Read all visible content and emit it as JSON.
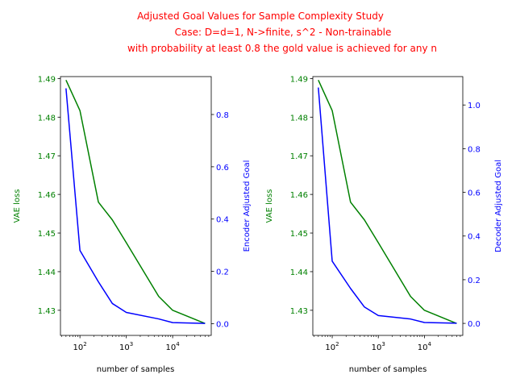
{
  "title_lines": [
    "Adjusted Goal Values for Sample Complexity Study",
    "Case: D=d=1, N->finite, s^2 - Non-trainable",
    "with probability at least 0.8 the gold value is achieved for any n"
  ],
  "colors": {
    "title": "#ff0000",
    "loss": "#008000",
    "goal": "#0000ff",
    "axis": "#000000"
  },
  "chart_data": [
    {
      "type": "line",
      "xscale": "log",
      "xlabel": "number of samples",
      "xlim": [
        38,
        68000
      ],
      "xticks": [
        {
          "value": 100,
          "base": "10",
          "exp": "2"
        },
        {
          "value": 1000,
          "base": "10",
          "exp": "3"
        },
        {
          "value": 10000,
          "base": "10",
          "exp": "4"
        }
      ],
      "ylabel_left": "VAE loss",
      "ylim_left": [
        1.4235,
        1.4905
      ],
      "yticks_left": [
        "1.43",
        "1.44",
        "1.45",
        "1.46",
        "1.47",
        "1.48",
        "1.49"
      ],
      "ylabel_right": "Encoder Adjusted Goal",
      "ylim_right": [
        -0.045,
        0.945
      ],
      "yticks_right": [
        "0.0",
        "0.2",
        "0.4",
        "0.6",
        "0.8"
      ],
      "x": [
        50,
        100,
        250,
        500,
        1000,
        5000,
        10000,
        50000
      ],
      "series": [
        {
          "axis": "left",
          "color": "#008000",
          "values": [
            1.4896,
            1.4817,
            1.458,
            1.4534,
            1.4475,
            1.4336,
            1.43,
            1.4266
          ]
        },
        {
          "axis": "right",
          "color": "#0000ff",
          "values": [
            0.9,
            0.28,
            0.16,
            0.077,
            0.043,
            0.018,
            0.004,
            0.001
          ]
        }
      ]
    },
    {
      "type": "line",
      "xscale": "log",
      "xlabel": "number of samples",
      "xlim": [
        38,
        68000
      ],
      "xticks": [
        {
          "value": 100,
          "base": "10",
          "exp": "2"
        },
        {
          "value": 1000,
          "base": "10",
          "exp": "3"
        },
        {
          "value": 10000,
          "base": "10",
          "exp": "4"
        }
      ],
      "ylabel_left": "VAE loss",
      "ylim_left": [
        1.4235,
        1.4905
      ],
      "yticks_left": [
        "1.43",
        "1.44",
        "1.45",
        "1.46",
        "1.47",
        "1.48",
        "1.49"
      ],
      "ylabel_right": "Decoder Adjusted Goal",
      "ylim_right": [
        -0.055,
        1.13
      ],
      "yticks_right": [
        "0.0",
        "0.2",
        "0.4",
        "0.6",
        "0.8",
        "1.0"
      ],
      "x": [
        50,
        100,
        250,
        500,
        1000,
        5000,
        10000,
        50000
      ],
      "series": [
        {
          "axis": "left",
          "color": "#008000",
          "values": [
            1.4896,
            1.4817,
            1.458,
            1.4534,
            1.4475,
            1.4336,
            1.43,
            1.4266
          ]
        },
        {
          "axis": "right",
          "color": "#0000ff",
          "values": [
            1.08,
            0.285,
            0.16,
            0.075,
            0.036,
            0.02,
            0.004,
            0.001
          ]
        }
      ]
    }
  ]
}
